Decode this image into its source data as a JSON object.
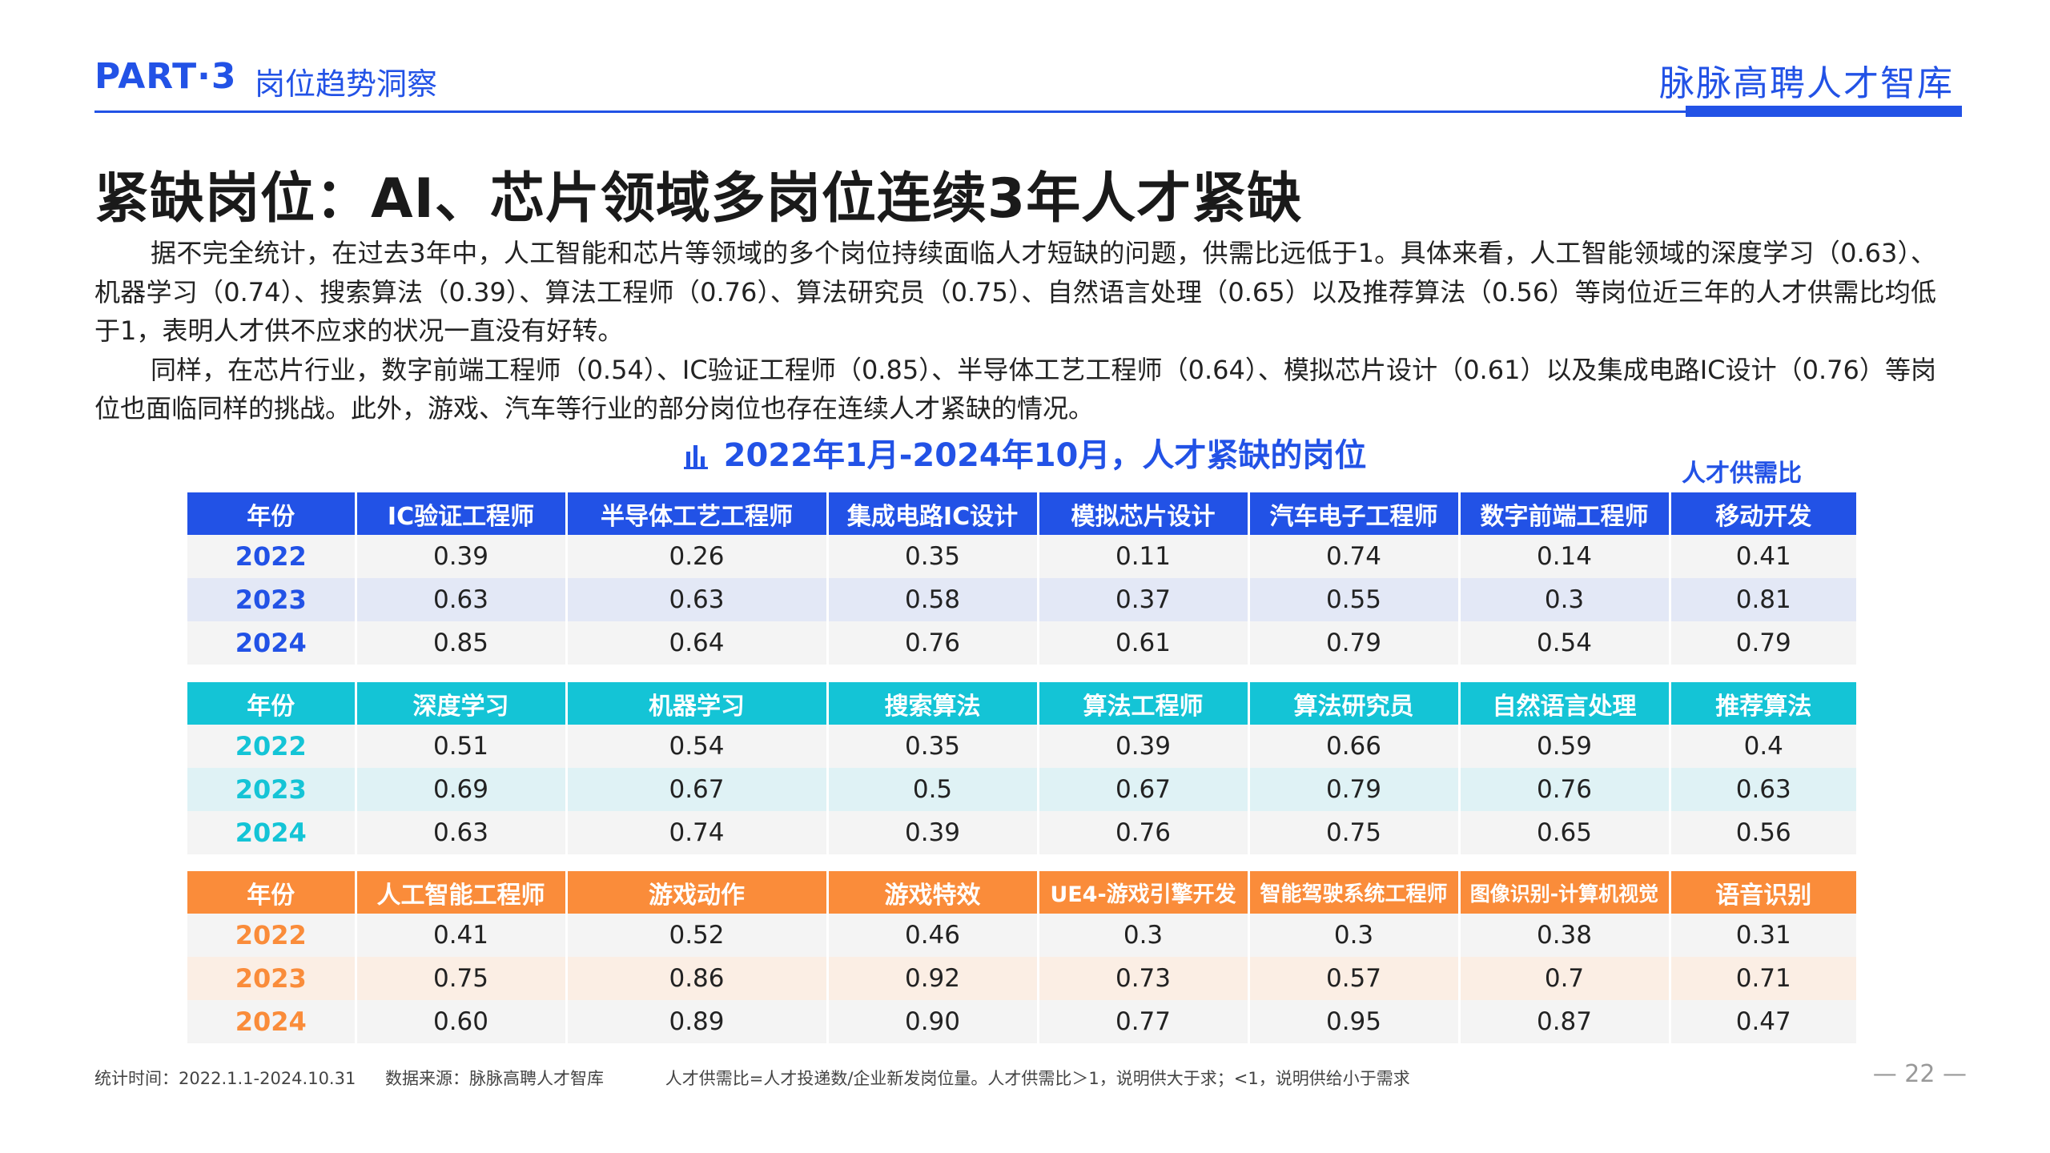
{
  "header": {
    "part": "PART·3",
    "section": "岗位趋势洞察",
    "brand": "脉脉高聘人才智库"
  },
  "title": "紧缺岗位：AI、芯片领域多岗位连续3年人才紧缺",
  "paragraphs": [
    "据不完全统计，在过去3年中，人工智能和芯片等领域的多个岗位持续面临人才短缺的问题，供需比远低于1。具体来看，人工智能领域的深度学习（0.63）、机器学习（0.74）、搜索算法（0.39）、算法工程师（0.76）、算法研究员（0.75）、自然语言处理（0.65）以及推荐算法（0.56）等岗位近三年的人才供需比均低于1，表明人才供不应求的状况一直没有好转。",
    "同样，在芯片行业，数字前端工程师（0.54）、IC验证工程师（0.85）、半导体工艺工程师（0.64）、模拟芯片设计（0.61）以及集成电路IC设计（0.76）等岗位也面临同样的挑战。此外，游戏、汽车等行业的部分岗位也存在连续人才紧缺的情况。"
  ],
  "table_title": "2022年1月-2024年10月，人才紧缺的岗位",
  "unit_label": "人才供需比",
  "colors": {
    "blue": "#2252e6",
    "cyan": "#14c4d6",
    "orange": "#fa8c3a"
  },
  "tables": [
    {
      "header": [
        "年份",
        "IC验证工程师",
        "半导体工艺工程师",
        "集成电路IC设计",
        "模拟芯片设计",
        "汽车电子工程师",
        "数字前端工程师",
        "移动开发"
      ],
      "rows": [
        [
          "2022",
          "0.39",
          "0.26",
          "0.35",
          "0.11",
          "0.74",
          "0.14",
          "0.41"
        ],
        [
          "2023",
          "0.63",
          "0.63",
          "0.58",
          "0.37",
          "0.55",
          "0.3",
          "0.81"
        ],
        [
          "2024",
          "0.85",
          "0.64",
          "0.76",
          "0.61",
          "0.79",
          "0.54",
          "0.79"
        ]
      ]
    },
    {
      "header": [
        "年份",
        "深度学习",
        "机器学习",
        "搜索算法",
        "算法工程师",
        "算法研究员",
        "自然语言处理",
        "推荐算法"
      ],
      "rows": [
        [
          "2022",
          "0.51",
          "0.54",
          "0.35",
          "0.39",
          "0.66",
          "0.59",
          "0.4"
        ],
        [
          "2023",
          "0.69",
          "0.67",
          "0.5",
          "0.67",
          "0.79",
          "0.76",
          "0.63"
        ],
        [
          "2024",
          "0.63",
          "0.74",
          "0.39",
          "0.76",
          "0.75",
          "0.65",
          "0.56"
        ]
      ]
    },
    {
      "header": [
        "年份",
        "人工智能工程师",
        "游戏动作",
        "游戏特效",
        "UE4-游戏引擎开发",
        "智能驾驶系统工程师",
        "图像识别-计算机视觉",
        "语音识别"
      ],
      "rows": [
        [
          "2022",
          "0.41",
          "0.52",
          "0.46",
          "0.3",
          "0.3",
          "0.38",
          "0.31"
        ],
        [
          "2023",
          "0.75",
          "0.86",
          "0.92",
          "0.73",
          "0.57",
          "0.7",
          "0.71"
        ],
        [
          "2024",
          "0.60",
          "0.89",
          "0.90",
          "0.77",
          "0.95",
          "0.87",
          "0.47"
        ]
      ]
    }
  ],
  "footer": {
    "stat_time": "统计时间：2022.1.1-2024.10.31",
    "source": "数据来源：脉脉高聘人才智库",
    "note": "人才供需比=人才投递数/企业新发岗位量。人才供需比＞1，说明供大于求；<1，说明供给小于需求"
  },
  "page_number": "— 22 —"
}
